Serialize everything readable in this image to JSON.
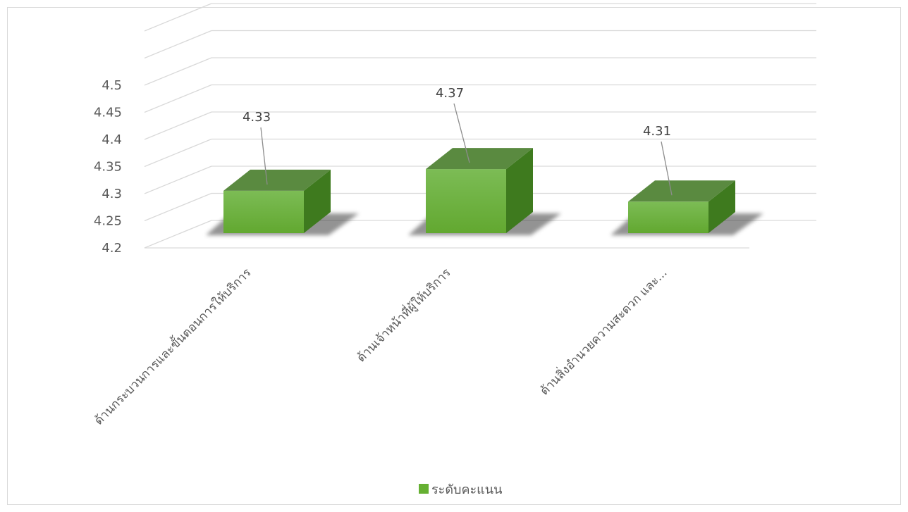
{
  "chart_data": {
    "type": "bar",
    "style": "3d-column",
    "categories": [
      "ด้านกระบวนการและขั้นตอนการให้บริการ",
      "ด้านเจ้าหน้าที่ผู้ให้บริการ",
      "ด้านสิ่งอำนวยความสะดวก และ..."
    ],
    "series": [
      {
        "name": "ระดับคะแนน",
        "values": [
          4.33,
          4.37,
          4.31
        ],
        "color": "#66b032"
      }
    ],
    "data_labels": [
      "4.33",
      "4.37",
      "4.31"
    ],
    "y_ticks": [
      "4.2",
      "4.25",
      "4.3",
      "4.35",
      "4.4",
      "4.45",
      "4.5"
    ],
    "ylim": [
      4.2,
      4.5
    ],
    "grid": true,
    "legend_position": "bottom"
  },
  "legend": {
    "label": "ระดับคะแนน"
  }
}
